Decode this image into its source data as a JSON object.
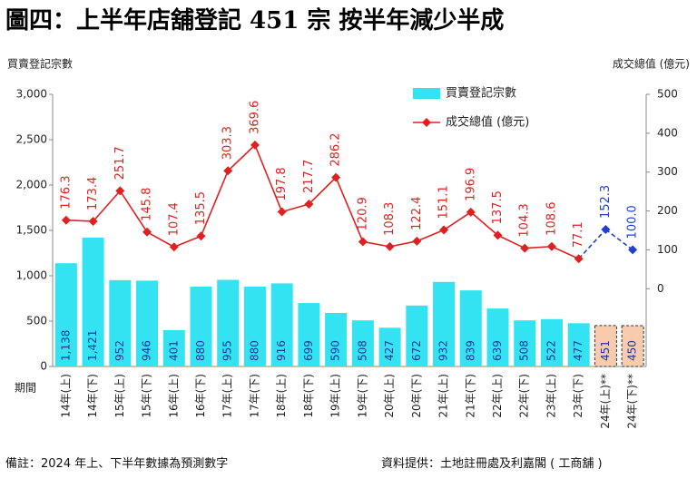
{
  "chart_data": {
    "type": "bar_line",
    "title": "圖四：上半年店舖登記 451 宗 按半年減少半成",
    "y_label": "買賣登記宗數",
    "y2_label": "成交總值 (億元)",
    "x_label": "期間",
    "categories": [
      "14年(上)",
      "14年(下)",
      "15年(上)",
      "15年(下)",
      "16年(上)",
      "16年(下)",
      "17年(上)",
      "17年(下)",
      "18年(上)",
      "18年(下)",
      "19年(上)",
      "19年(下)",
      "20年(上)",
      "20年(下)",
      "21年(上)",
      "21年(下)",
      "22年(上)",
      "22年(下)",
      "23年(上)",
      "23年(下)",
      "24年(上)**",
      "24年(下)**"
    ],
    "series": [
      {
        "name": "買賣登記宗數",
        "type": "bar",
        "color": "#33e3f2",
        "colors": [
          "#33e3f2",
          "#33e3f2",
          "#33e3f2",
          "#33e3f2",
          "#33e3f2",
          "#33e3f2",
          "#33e3f2",
          "#33e3f2",
          "#33e3f2",
          "#33e3f2",
          "#33e3f2",
          "#33e3f2",
          "#33e3f2",
          "#33e3f2",
          "#33e3f2",
          "#33e3f2",
          "#33e3f2",
          "#33e3f2",
          "#33e3f2",
          "#33e3f2",
          "#f8cbad",
          "#f8cbad"
        ],
        "values": [
          1138,
          1421,
          952,
          946,
          401,
          880,
          955,
          880,
          916,
          699,
          590,
          508,
          427,
          672,
          932,
          839,
          639,
          508,
          522,
          477,
          451,
          450
        ],
        "value_labels": [
          "1,138",
          "1,421",
          "952",
          "946",
          "401",
          "880",
          "955",
          "880",
          "916",
          "699",
          "590",
          "508",
          "427",
          "672",
          "932",
          "839",
          "639",
          "508",
          "522",
          "477",
          "451",
          "450"
        ]
      },
      {
        "name": "成交總值 (億元)",
        "type": "line",
        "axis": "y2",
        "color": "#e02020",
        "colors": [
          "#e02020",
          "#e02020",
          "#e02020",
          "#e02020",
          "#e02020",
          "#e02020",
          "#e02020",
          "#e02020",
          "#e02020",
          "#e02020",
          "#e02020",
          "#e02020",
          "#e02020",
          "#e02020",
          "#e02020",
          "#e02020",
          "#e02020",
          "#e02020",
          "#e02020",
          "#e02020",
          "#1f3fd0",
          "#1f3fd0"
        ],
        "values": [
          176.3,
          173.4,
          251.7,
          145.8,
          107.4,
          135.5,
          303.3,
          369.6,
          197.8,
          217.7,
          286.2,
          120.9,
          108.3,
          122.4,
          151.1,
          196.9,
          137.5,
          104.3,
          108.6,
          77.1,
          152.3,
          100.0
        ],
        "value_labels": [
          "176.3",
          "173.4",
          "251.7",
          "145.8",
          "107.4",
          "135.5",
          "303.3",
          "369.6",
          "197.8",
          "217.7",
          "286.2",
          "120.9",
          "108.3",
          "122.4",
          "151.1",
          "196.9",
          "137.5",
          "104.3",
          "108.6",
          "77.1",
          "152.3",
          "100.0"
        ]
      }
    ],
    "ylim": [
      0,
      3000
    ],
    "yticks": [
      0,
      500,
      {
        "value": 1000,
        "label": "1,000"
      },
      {
        "value": 1500,
        "label": "1,500"
      },
      {
        "value": 2000,
        "label": "2,000"
      },
      {
        "value": 2500,
        "label": "2,500"
      },
      {
        "value": 3000,
        "label": "3,000"
      }
    ],
    "y2lim": [
      -200,
      500
    ],
    "y2ticks": [
      0,
      100,
      200,
      300,
      400,
      500
    ],
    "legend": "top-right",
    "notes": [
      "備註：2024 年上、下半年數據為預測數字",
      "資料提供：土地註冊處及利嘉閣 ( 工商舖 )"
    ]
  }
}
